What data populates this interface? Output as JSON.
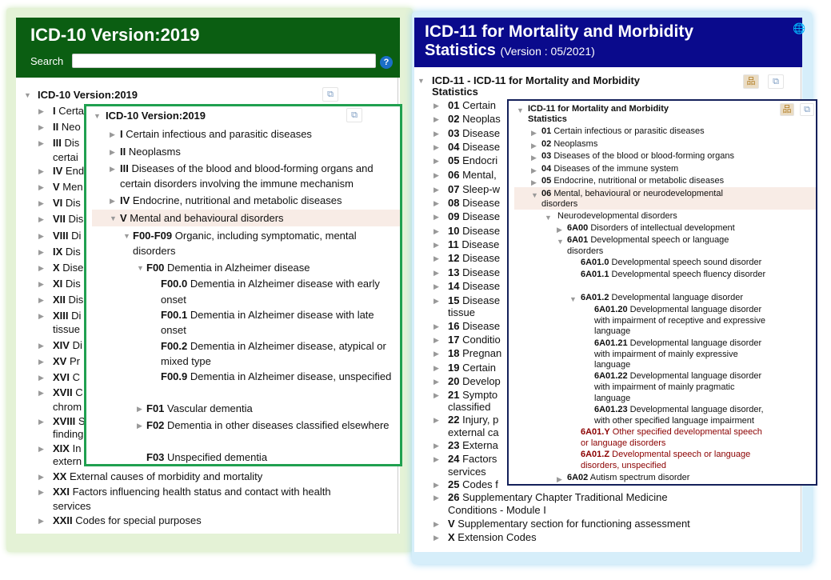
{
  "icd10": {
    "title": "ICD-10 Version:2019",
    "search_label": "Search",
    "search_value": "",
    "help_icon": "question-icon",
    "tree": [
      {
        "code": "",
        "text": "ICD-10 Version:2019",
        "arrow": "expanded",
        "level": 0,
        "bold": true
      },
      {
        "code": "I",
        "text": "Certa",
        "arrow": "collapsed",
        "level": 1
      },
      {
        "code": "II",
        "text": "Neo",
        "arrow": "collapsed",
        "level": 1
      },
      {
        "code": "III",
        "text": "Dis",
        "arrow": "collapsed",
        "level": 1
      },
      {
        "code": "",
        "text": "certai",
        "arrow": "none",
        "level": 1
      },
      {
        "code": "IV",
        "text": "End",
        "arrow": "collapsed",
        "level": 1
      },
      {
        "code": "V",
        "text": "Men",
        "arrow": "collapsed",
        "level": 1
      },
      {
        "code": "VI",
        "text": "Dis",
        "arrow": "collapsed",
        "level": 1
      },
      {
        "code": "VII",
        "text": "Dis",
        "arrow": "collapsed",
        "level": 1
      },
      {
        "code": "VIII",
        "text": "Di",
        "arrow": "collapsed",
        "level": 1
      },
      {
        "code": "IX",
        "text": "Dis",
        "arrow": "collapsed",
        "level": 1
      },
      {
        "code": "X",
        "text": "Dise",
        "arrow": "collapsed",
        "level": 1
      },
      {
        "code": "XI",
        "text": "Dis",
        "arrow": "collapsed",
        "level": 1
      },
      {
        "code": "XII",
        "text": "Dis",
        "arrow": "collapsed",
        "level": 1
      },
      {
        "code": "XIII",
        "text": "Di",
        "arrow": "collapsed",
        "level": 1
      },
      {
        "code": "",
        "text": "tissue",
        "arrow": "none",
        "level": 1
      },
      {
        "code": "XIV",
        "text": "Di",
        "arrow": "collapsed",
        "level": 1
      },
      {
        "code": "XV",
        "text": "Pr",
        "arrow": "collapsed",
        "level": 1
      },
      {
        "code": "XVI",
        "text": "C",
        "arrow": "collapsed",
        "level": 1
      },
      {
        "code": "XVII",
        "text": "C",
        "arrow": "collapsed",
        "level": 1
      },
      {
        "code": "",
        "text": "chrom",
        "arrow": "none",
        "level": 1
      },
      {
        "code": "XVIII",
        "text": "S",
        "arrow": "collapsed",
        "level": 1
      },
      {
        "code": "",
        "text": "finding",
        "arrow": "none",
        "level": 1
      },
      {
        "code": "XIX",
        "text": "In",
        "arrow": "collapsed",
        "level": 1
      },
      {
        "code": "",
        "text": "extern",
        "arrow": "none",
        "level": 1
      },
      {
        "code": "XX",
        "text": "External causes of morbidity and mortality",
        "arrow": "collapsed",
        "level": 1
      },
      {
        "code": "XXI",
        "text": "Factors influencing health status and contact with health",
        "arrow": "collapsed",
        "level": 1
      },
      {
        "code": "",
        "text": "services",
        "arrow": "none",
        "level": 1
      },
      {
        "code": "XXII",
        "text": "Codes for special purposes",
        "arrow": "collapsed",
        "level": 1
      }
    ],
    "inset": [
      {
        "code": "",
        "text": "ICD-10 Version:2019",
        "arrow": "expanded",
        "level": 0,
        "bold": true
      },
      {
        "code": "I",
        "text": "Certain infectious and parasitic diseases",
        "arrow": "collapsed",
        "level": 1
      },
      {
        "code": "II",
        "text": "Neoplasms",
        "arrow": "collapsed",
        "level": 1
      },
      {
        "code": "III",
        "text": "Diseases of the blood and blood-forming organs and",
        "arrow": "collapsed",
        "level": 1
      },
      {
        "code": "",
        "text": "certain disorders involving the immune mechanism",
        "arrow": "none",
        "level": 1
      },
      {
        "code": "IV",
        "text": "Endocrine, nutritional and metabolic diseases",
        "arrow": "collapsed",
        "level": 1
      },
      {
        "code": "V",
        "text": "Mental and behavioural disorders",
        "arrow": "expanded",
        "level": 1,
        "selected": true
      },
      {
        "code": "F00-F09",
        "text": "Organic, including symptomatic, mental",
        "arrow": "expanded",
        "level": 2
      },
      {
        "code": "",
        "text": "disorders",
        "arrow": "none",
        "level": 2
      },
      {
        "code": "F00",
        "text": "Dementia in Alzheimer disease",
        "arrow": "expanded",
        "level": 3
      },
      {
        "code": "F00.0",
        "text": "Dementia in Alzheimer disease with early",
        "arrow": "none",
        "level": 4
      },
      {
        "code": "",
        "text": "onset",
        "arrow": "none",
        "level": 4
      },
      {
        "code": "F00.1",
        "text": "Dementia in Alzheimer disease with late",
        "arrow": "none",
        "level": 4
      },
      {
        "code": "",
        "text": "onset",
        "arrow": "none",
        "level": 4
      },
      {
        "code": "F00.2",
        "text": "Dementia in Alzheimer disease, atypical or",
        "arrow": "none",
        "level": 4
      },
      {
        "code": "",
        "text": "mixed type",
        "arrow": "none",
        "level": 4
      },
      {
        "code": "F00.9",
        "text": "Dementia in Alzheimer disease, unspecified",
        "arrow": "none",
        "level": 4
      },
      {
        "code": "F01",
        "text": "Vascular dementia",
        "arrow": "collapsed",
        "level": 3
      },
      {
        "code": "F02",
        "text": "Dementia in other diseases classified elsewhere",
        "arrow": "collapsed",
        "level": 3
      },
      {
        "code": "F03",
        "text": "Unspecified dementia",
        "arrow": "none",
        "level": 3
      }
    ]
  },
  "icd11": {
    "title_line1": "ICD-11 for Mortality and Morbidity",
    "title_line2": "Statistics",
    "version": "(Version : 05/2021)",
    "globe_icon": "globe-icon",
    "tree": [
      {
        "code": "",
        "text": "ICD-11 - ICD-11 for Mortality and Morbidity",
        "arrow": "expanded",
        "level": 0,
        "bold": true
      },
      {
        "code": "",
        "text": "Statistics",
        "arrow": "none",
        "level": 0,
        "bold": true
      },
      {
        "code": "01",
        "text": "Certain",
        "arrow": "collapsed",
        "level": 1
      },
      {
        "code": "02",
        "text": "Neoplas",
        "arrow": "collapsed",
        "level": 1
      },
      {
        "code": "03",
        "text": "Disease",
        "arrow": "collapsed",
        "level": 1
      },
      {
        "code": "04",
        "text": "Disease",
        "arrow": "collapsed",
        "level": 1
      },
      {
        "code": "05",
        "text": "Endocri",
        "arrow": "collapsed",
        "level": 1
      },
      {
        "code": "06",
        "text": "Mental,",
        "arrow": "collapsed",
        "level": 1
      },
      {
        "code": "07",
        "text": "Sleep-w",
        "arrow": "collapsed",
        "level": 1
      },
      {
        "code": "08",
        "text": "Disease",
        "arrow": "collapsed",
        "level": 1
      },
      {
        "code": "09",
        "text": "Disease",
        "arrow": "collapsed",
        "level": 1
      },
      {
        "code": "10",
        "text": "Disease",
        "arrow": "collapsed",
        "level": 1
      },
      {
        "code": "11",
        "text": "Disease",
        "arrow": "collapsed",
        "level": 1
      },
      {
        "code": "12",
        "text": "Disease",
        "arrow": "collapsed",
        "level": 1
      },
      {
        "code": "13",
        "text": "Disease",
        "arrow": "collapsed",
        "level": 1
      },
      {
        "code": "14",
        "text": "Disease",
        "arrow": "collapsed",
        "level": 1
      },
      {
        "code": "15",
        "text": "Disease",
        "arrow": "collapsed",
        "level": 1
      },
      {
        "code": "",
        "text": "tissue",
        "arrow": "none",
        "level": 1
      },
      {
        "code": "16",
        "text": "Disease",
        "arrow": "collapsed",
        "level": 1
      },
      {
        "code": "17",
        "text": "Conditio",
        "arrow": "collapsed",
        "level": 1
      },
      {
        "code": "18",
        "text": "Pregnan",
        "arrow": "collapsed",
        "level": 1
      },
      {
        "code": "19",
        "text": "Certain",
        "arrow": "collapsed",
        "level": 1
      },
      {
        "code": "20",
        "text": "Develop",
        "arrow": "collapsed",
        "level": 1
      },
      {
        "code": "21",
        "text": "Sympto",
        "arrow": "collapsed",
        "level": 1
      },
      {
        "code": "",
        "text": "classified",
        "arrow": "none",
        "level": 1
      },
      {
        "code": "22",
        "text": "Injury, p",
        "arrow": "collapsed",
        "level": 1
      },
      {
        "code": "",
        "text": "external ca",
        "arrow": "none",
        "level": 1
      },
      {
        "code": "23",
        "text": "Externa",
        "arrow": "collapsed",
        "level": 1
      },
      {
        "code": "24",
        "text": "Factors",
        "arrow": "collapsed",
        "level": 1
      },
      {
        "code": "",
        "text": "services",
        "arrow": "none",
        "level": 1
      },
      {
        "code": "25",
        "text": "Codes f",
        "arrow": "collapsed",
        "level": 1
      },
      {
        "code": "26",
        "text": "Supplementary Chapter Traditional Medicine",
        "arrow": "collapsed",
        "level": 1
      },
      {
        "code": "",
        "text": "Conditions - Module I",
        "arrow": "none",
        "level": 1
      },
      {
        "code": "V",
        "text": "Supplementary section for functioning assessment",
        "arrow": "collapsed",
        "level": 1
      },
      {
        "code": "X",
        "text": "Extension Codes",
        "arrow": "collapsed",
        "level": 1
      }
    ],
    "inset": [
      {
        "code": "",
        "text": "ICD-11 for Mortality and Morbidity",
        "arrow": "expanded",
        "level": 0,
        "bold": true
      },
      {
        "code": "",
        "text": "Statistics",
        "arrow": "none",
        "level": 0,
        "bold": true
      },
      {
        "code": "01",
        "text": "Certain infectious or parasitic diseases",
        "arrow": "collapsed",
        "level": 1
      },
      {
        "code": "02",
        "text": "Neoplasms",
        "arrow": "collapsed",
        "level": 1
      },
      {
        "code": "03",
        "text": "Diseases of the blood or blood-forming organs",
        "arrow": "collapsed",
        "level": 1
      },
      {
        "code": "04",
        "text": "Diseases of the immune system",
        "arrow": "collapsed",
        "level": 1
      },
      {
        "code": "05",
        "text": "Endocrine, nutritional or metabolic diseases",
        "arrow": "collapsed",
        "level": 1
      },
      {
        "code": "06",
        "text": "Mental, behavioural or neurodevelopmental",
        "arrow": "expanded",
        "level": 1,
        "selected": true
      },
      {
        "code": "",
        "text": "disorders",
        "arrow": "none",
        "level": 1
      },
      {
        "code": "",
        "text": "Neurodevelopmental disorders",
        "arrow": "expanded",
        "level": 2
      },
      {
        "code": "6A00",
        "text": "Disorders of intellectual development",
        "arrow": "collapsed",
        "level": 3
      },
      {
        "code": "6A01",
        "text": "Developmental speech or language",
        "arrow": "expanded",
        "level": 3
      },
      {
        "code": "",
        "text": "disorders",
        "arrow": "none",
        "level": 3
      },
      {
        "code": "6A01.0",
        "text": "Developmental speech sound disorder",
        "arrow": "none",
        "level": 4
      },
      {
        "code": "6A01.1",
        "text": "Developmental speech fluency disorder",
        "arrow": "none",
        "level": 4
      },
      {
        "code": "6A01.2",
        "text": "Developmental language disorder",
        "arrow": "expanded",
        "level": 4
      },
      {
        "code": "6A01.20",
        "text": "Developmental language disorder",
        "arrow": "none",
        "level": 5
      },
      {
        "code": "",
        "text": "with impairment of receptive and expressive",
        "arrow": "none",
        "level": 5
      },
      {
        "code": "",
        "text": "language",
        "arrow": "none",
        "level": 5
      },
      {
        "code": "6A01.21",
        "text": "Developmental language disorder",
        "arrow": "none",
        "level": 5
      },
      {
        "code": "",
        "text": "with impairment of mainly expressive",
        "arrow": "none",
        "level": 5
      },
      {
        "code": "",
        "text": "language",
        "arrow": "none",
        "level": 5
      },
      {
        "code": "6A01.22",
        "text": "Developmental language disorder",
        "arrow": "none",
        "level": 5
      },
      {
        "code": "",
        "text": "with impairment of mainly pragmatic",
        "arrow": "none",
        "level": 5
      },
      {
        "code": "",
        "text": "language",
        "arrow": "none",
        "level": 5
      },
      {
        "code": "6A01.23",
        "text": "Developmental language disorder,",
        "arrow": "none",
        "level": 5
      },
      {
        "code": "",
        "text": "with other specified language impairment",
        "arrow": "none",
        "level": 5
      },
      {
        "code": "6A01.Y",
        "text": "Other specified developmental speech",
        "arrow": "none",
        "level": 4,
        "color": "#8b0000"
      },
      {
        "code": "",
        "text": "or language disorders",
        "arrow": "none",
        "level": 4,
        "color": "#8b0000"
      },
      {
        "code": "6A01.Z",
        "text": "Developmental speech or language",
        "arrow": "none",
        "level": 4,
        "color": "#8b0000"
      },
      {
        "code": "",
        "text": "disorders, unspecified",
        "arrow": "none",
        "level": 4,
        "color": "#8b0000"
      },
      {
        "code": "6A02",
        "text": "Autism spectrum disorder",
        "arrow": "collapsed",
        "level": 3
      }
    ]
  }
}
